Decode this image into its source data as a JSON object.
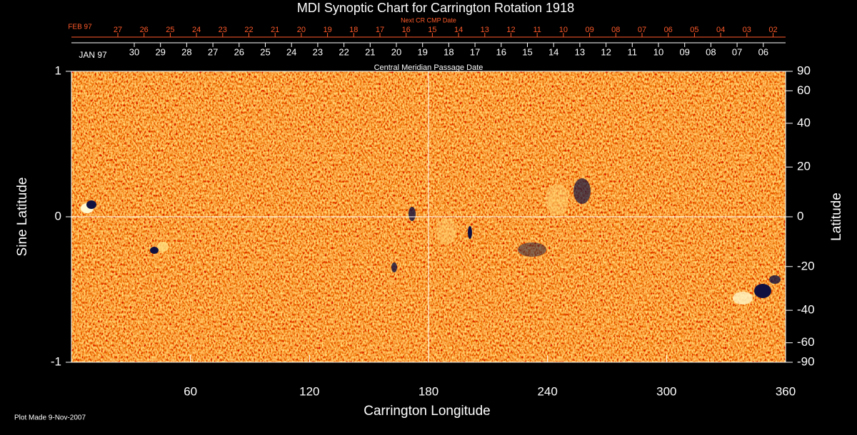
{
  "chart_data": {
    "type": "synoptic-map",
    "title": "MDI Synoptic Chart for Carrington Rotation 1918",
    "x_label": "Carrington Longitude",
    "y_label": "Sine Latitude",
    "y2_label": "Latitude",
    "top_axis_label": "Next CR CMP Date",
    "top_axis_start": "FEB 97",
    "top_axis_dates": [
      "27",
      "26",
      "25",
      "24",
      "23",
      "22",
      "21",
      "20",
      "19",
      "18",
      "17",
      "16",
      "15",
      "14",
      "13",
      "12",
      "11",
      "10",
      "09",
      "08",
      "07",
      "06",
      "05",
      "04",
      "03",
      "02"
    ],
    "second_axis_label": "Central Meridian Passage Date",
    "second_axis_start": "JAN 97",
    "second_axis_dates": [
      "30",
      "29",
      "28",
      "27",
      "26",
      "25",
      "24",
      "23",
      "22",
      "21",
      "20",
      "19",
      "18",
      "17",
      "16",
      "15",
      "14",
      "13",
      "12",
      "11",
      "10",
      "09",
      "08",
      "07",
      "06"
    ],
    "xlim": [
      0,
      360
    ],
    "xticks": [
      60,
      120,
      180,
      240,
      300,
      360
    ],
    "ylim": [
      -1,
      1
    ],
    "yticks": [
      -1,
      0,
      1
    ],
    "y2lim": [
      -90,
      90
    ],
    "y2scale": "sine",
    "y2ticks": [
      90,
      60,
      40,
      20,
      0,
      -20,
      -40,
      -60,
      -90
    ],
    "reference_lines": {
      "x": 180,
      "y": 0
    },
    "footer": "Plot Made  9-Nov-2007"
  }
}
